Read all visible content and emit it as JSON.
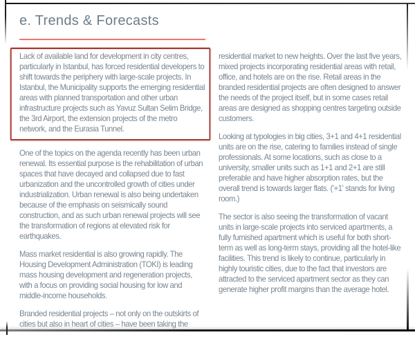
{
  "header": {
    "title": "e. Trends & Forecasts"
  },
  "colors": {
    "title_text": "#6d7d8b",
    "body_text": "#78858f",
    "underline_red": "#f5736d",
    "highlight_box_border": "#a43b34",
    "scan_edge": "#1d1d1d"
  },
  "columns": {
    "left": {
      "p1": "Lack of available land for development in city centres, particularly in Istanbul, has forced residential developers to shift towards the periphery with large-scale projects. In Istanbul, the Municipality supports the emerging residential areas with planned transportation and other urban infrastructure projects such as Yavuz Sultan Selim Bridge, the 3rd Airport, the extension projects of the metro network, and the Eurasia Tunnel.",
      "p2": "One of the topics on the agenda recently has been urban renewal. Its essential purpose is the rehabilitation of urban spaces that have decayed and collapsed due to fast urbanization and the uncontrolled growth of cities under industrialization. Urban renewal is also being undertaken because of the emphasis on seismically sound construction, and as such urban renewal projects will see the transformation of regions at elevated risk for earthquakes.",
      "p3": "Mass market residential is also growing rapidly. The Housing Development Administration (TOKI) is leading mass housing development and regeneration projects, with a focus on providing social housing for low and middle-income households.",
      "p4": "Branded residential projects – not only on the outskirts of cities but also in heart of cities – have been taking the"
    },
    "right": {
      "p1": "residential market to new heights. Over the last five years, mixed projects incorporating residential areas with retail, office, and hotels are on the rise. Retail areas in the branded residential projects are often designed to answer the needs of the project itself, but in some cases retail areas are designed as shopping centres targeting outside customers.",
      "p2": "Looking at typologies in big cities, 3+1 and 4+1 residential units are on the rise, catering to families instead of single professionals. At some locations, such as close to a university, smaller units such as 1+1 and 2+1 are still preferable and have higher absorption rates, but the overall trend is towards larger flats. ('+1' stands for living room.)",
      "p3": "The sector is also seeing the transformation of vacant units in large-scale projects into serviced apartments, a fully furnished apartment which is useful for both short-term as well as long-term stays, providing all the hotel-like facilities. This trend is likely to continue, particularly in highly touristic cities, due to the fact that investors are attracted to the serviced apartment sector as they can generate higher profit margins than the average hotel."
    }
  }
}
